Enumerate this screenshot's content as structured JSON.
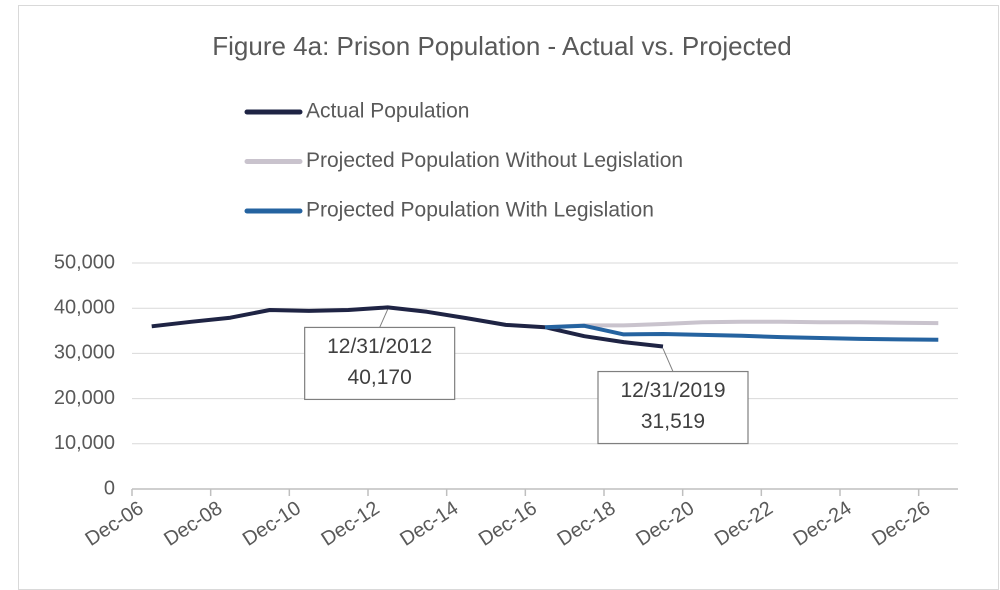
{
  "chart_data": {
    "type": "line",
    "title": "Figure 4a: Prison Population -  Actual vs. Projected",
    "categories": [
      "Dec-06",
      null,
      "Dec-08",
      null,
      "Dec-10",
      null,
      "Dec-12",
      null,
      "Dec-14",
      null,
      "Dec-16",
      null,
      "Dec-18",
      null,
      "Dec-20",
      null,
      "Dec-22",
      null,
      "Dec-24",
      null,
      "Dec-26"
    ],
    "ylim": [
      0,
      50000
    ],
    "yticks": [
      0,
      {
        "value": 10000,
        "label": "10,000"
      },
      {
        "value": 20000,
        "label": "20,000"
      },
      {
        "value": 30000,
        "label": "30,000"
      },
      {
        "value": 40000,
        "label": "40,000"
      },
      {
        "value": 50000,
        "label": "50,000"
      }
    ],
    "grid": true,
    "legend": "top",
    "series": [
      {
        "name": "Actual Population",
        "color": "#1f2444",
        "values": [
          36000,
          37000,
          37900,
          39600,
          39400,
          39600,
          40170,
          39200,
          37800,
          36300,
          35800,
          33800,
          32500,
          31519,
          null,
          null,
          null,
          null,
          null,
          null,
          null
        ],
        "value_labels": [
          null,
          null,
          null,
          null,
          null,
          null,
          "40,170",
          null,
          null,
          null,
          null,
          null,
          null,
          "31,519",
          null,
          null,
          null,
          null,
          null,
          null,
          null
        ],
        "annotation_dates": [
          null,
          null,
          null,
          null,
          null,
          null,
          "12/31/2012",
          null,
          null,
          null,
          null,
          null,
          null,
          "12/31/2019",
          null,
          null,
          null,
          null,
          null,
          null,
          null
        ]
      },
      {
        "name": "Projected Population Without Legislation",
        "color": "#c9c3cd",
        "values": [
          null,
          null,
          null,
          null,
          null,
          null,
          null,
          null,
          null,
          null,
          35800,
          36200,
          36200,
          36500,
          36900,
          37000,
          37000,
          36900,
          36900,
          36800,
          36700
        ]
      },
      {
        "name": "Projected Population With Legislation",
        "color": "#2563a0",
        "values": [
          null,
          null,
          null,
          null,
          null,
          null,
          null,
          null,
          null,
          null,
          35800,
          36100,
          34200,
          34300,
          34100,
          33900,
          33600,
          33400,
          33200,
          33100,
          33000
        ]
      }
    ]
  }
}
